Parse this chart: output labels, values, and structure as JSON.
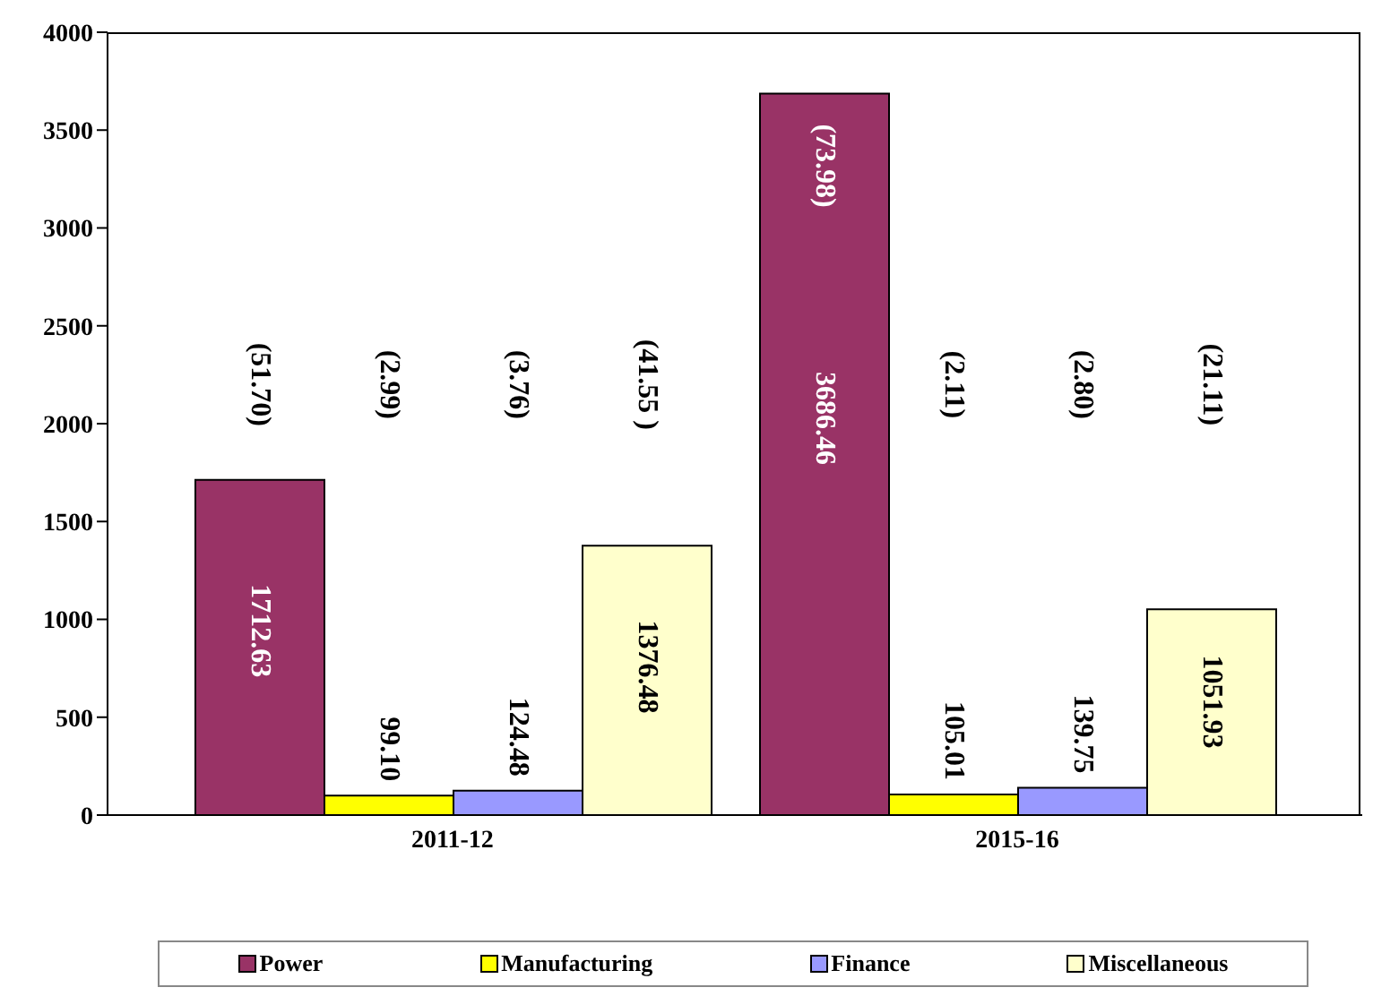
{
  "chart_data": {
    "type": "bar",
    "categories": [
      "2011-12",
      "2015-16"
    ],
    "series": [
      {
        "name": "Power",
        "color": "#993366",
        "values": [
          1712.63,
          3686.46
        ],
        "value_labels": [
          "1712.63",
          "3686.46"
        ]
      },
      {
        "name": "Manufacturing",
        "color": "#ffff00",
        "values": [
          99.1,
          105.01
        ],
        "value_labels": [
          "99.10",
          "105.01"
        ]
      },
      {
        "name": "Finance",
        "color": "#9999ff",
        "values": [
          124.48,
          139.75
        ],
        "value_labels": [
          "124.48",
          "139.75"
        ]
      },
      {
        "name": "Miscellaneous",
        "color": "#ffffcc",
        "values": [
          1376.48,
          1051.93
        ],
        "value_labels": [
          "1376.48",
          "1051.93"
        ]
      }
    ],
    "ylim": [
      0,
      4000
    ],
    "yticks": [
      0,
      500,
      1000,
      1500,
      2000,
      2500,
      3000,
      3500,
      4000
    ],
    "grid": false,
    "legend": "bottom",
    "annotations": [
      "(51.70)",
      "(2.99)",
      "(3.76)",
      "(41.55 )",
      "(73.98)",
      "(2.11)",
      "(2.80)",
      "(21.11)"
    ]
  }
}
